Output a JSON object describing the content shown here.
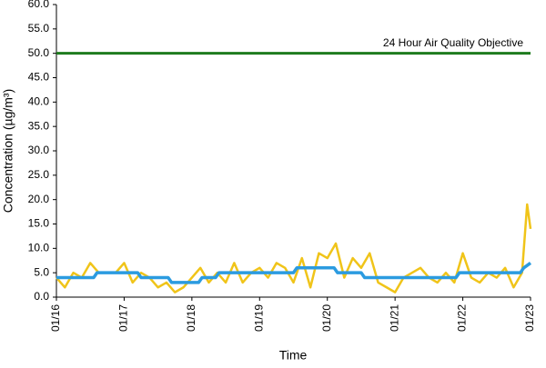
{
  "chart_data": {
    "type": "line",
    "xlabel": "Time",
    "ylabel": "Concentration (µg/m³)",
    "xlim": [
      0,
      7
    ],
    "xticks": [
      {
        "value": 0,
        "label": "01/16"
      },
      {
        "value": 1,
        "label": "01/17"
      },
      {
        "value": 2,
        "label": "01/18"
      },
      {
        "value": 3,
        "label": "01/19"
      },
      {
        "value": 4,
        "label": "01/20"
      },
      {
        "value": 5,
        "label": "01/21"
      },
      {
        "value": 6,
        "label": "01/22"
      },
      {
        "value": 7,
        "label": "01/23"
      }
    ],
    "ylim": [
      0,
      60
    ],
    "yticks": [
      {
        "value": 0,
        "label": "0.0"
      },
      {
        "value": 5,
        "label": "5.0"
      },
      {
        "value": 10,
        "label": "10.0"
      },
      {
        "value": 15,
        "label": "15.0"
      },
      {
        "value": 20,
        "label": "20.0"
      },
      {
        "value": 25,
        "label": "25.0"
      },
      {
        "value": 30,
        "label": "30.0"
      },
      {
        "value": 35,
        "label": "35.0"
      },
      {
        "value": 40,
        "label": "40.0"
      },
      {
        "value": 45,
        "label": "45.0"
      },
      {
        "value": 50,
        "label": "50.0"
      },
      {
        "value": 55,
        "label": "55.0"
      },
      {
        "value": 60,
        "label": "60.0"
      }
    ],
    "grid": false,
    "threshold": {
      "value": 50,
      "label": "24 Hour Air Quality Objective",
      "color": "#1e7b1e"
    },
    "series": [
      {
        "color": "#f0c419",
        "x": [
          0,
          0.125,
          0.25,
          0.375,
          0.5,
          0.625,
          0.75,
          0.875,
          1,
          1.125,
          1.25,
          1.375,
          1.5,
          1.625,
          1.75,
          1.875,
          2,
          2.125,
          2.25,
          2.375,
          2.5,
          2.625,
          2.75,
          2.875,
          3,
          3.125,
          3.25,
          3.375,
          3.5,
          3.625,
          3.75,
          3.875,
          4,
          4.125,
          4.25,
          4.375,
          4.5,
          4.625,
          4.75,
          4.875,
          5,
          5.125,
          5.25,
          5.375,
          5.5,
          5.625,
          5.75,
          5.875,
          6,
          6.125,
          6.25,
          6.375,
          6.5,
          6.625,
          6.75,
          6.875,
          6.95,
          7
        ],
        "values": [
          4,
          2,
          5,
          4,
          7,
          5,
          5,
          5,
          7,
          3,
          5,
          4,
          2,
          3,
          1,
          2,
          4,
          6,
          3,
          5,
          3,
          7,
          3,
          5,
          6,
          4,
          7,
          6,
          3,
          8,
          2,
          9,
          8,
          11,
          4,
          8,
          6,
          9,
          3,
          2,
          1,
          4,
          5,
          6,
          4,
          3,
          5,
          3,
          9,
          4,
          3,
          5,
          4,
          6,
          2,
          5,
          19,
          14
        ]
      },
      {
        "color": "#2b9be0",
        "x": [
          0,
          0.55,
          0.6,
          1.2,
          1.25,
          1.65,
          1.7,
          2.1,
          2.15,
          2.35,
          2.4,
          3.5,
          3.55,
          4.1,
          4.15,
          4.5,
          4.55,
          5.9,
          5.95,
          6.85,
          6.9,
          7
        ],
        "values": [
          4,
          4,
          5,
          5,
          4,
          4,
          3,
          3,
          4,
          4,
          5,
          5,
          6,
          6,
          5,
          5,
          4,
          4,
          5,
          5,
          6,
          7
        ]
      }
    ]
  }
}
